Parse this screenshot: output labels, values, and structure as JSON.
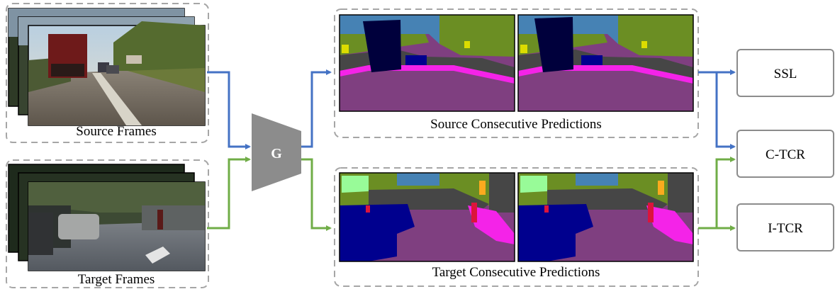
{
  "source_group": {
    "caption": "Source Frames"
  },
  "target_group": {
    "caption": "Target Frames"
  },
  "generator": {
    "label": "G"
  },
  "source_predictions": {
    "caption": "Source Consecutive Predictions"
  },
  "target_predictions": {
    "caption": "Target Consecutive Predictions"
  },
  "losses": {
    "ssl": "SSL",
    "c_tcr": "C-TCR",
    "i_tcr": "I-TCR"
  },
  "colors": {
    "source_arrow": "#4472c4",
    "target_arrow": "#70ad47",
    "generator_fill": "#8c8c8c",
    "dashed_border": "#a6a6a6",
    "loss_border": "#8c8c8c",
    "road": "#7f3f80",
    "sky": "#4682b4",
    "vegetation": "#6b8e23",
    "building": "#464646",
    "vehicle": "#00008e",
    "sidewalk": "#f423e8",
    "terrain": "#98fb98",
    "sign": "#dcdc00",
    "person": "#dc143c"
  }
}
